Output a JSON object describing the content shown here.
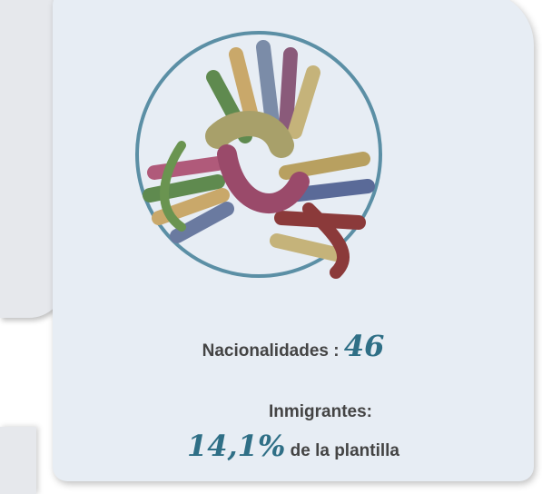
{
  "stats": {
    "nationalities": {
      "label": "Nacionalidades :",
      "value": "46"
    },
    "immigrants": {
      "label": "Inmigrantes:",
      "value": "14,1%",
      "suffix": "de la plantilla"
    }
  }
}
